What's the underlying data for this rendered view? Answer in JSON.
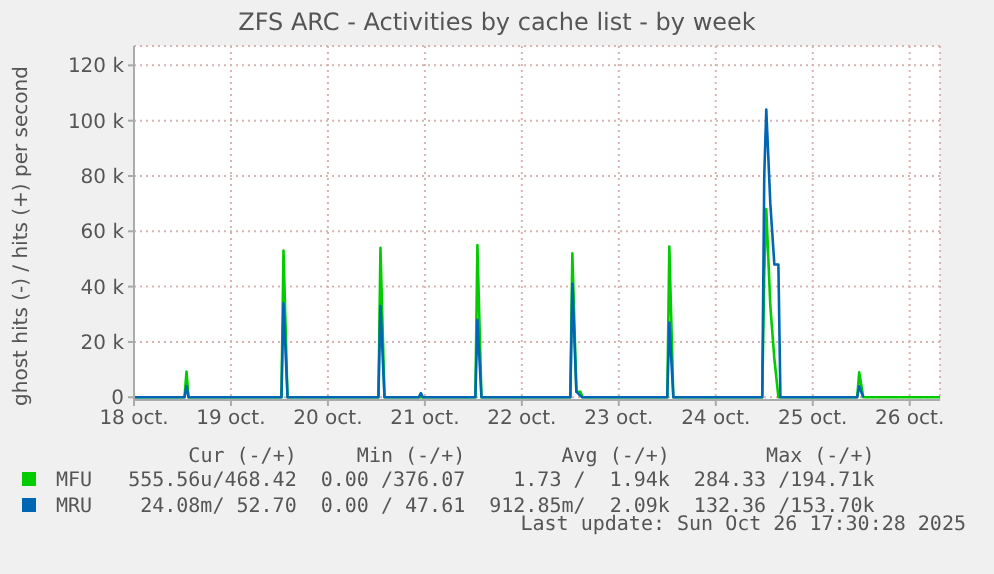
{
  "chart_data": {
    "type": "line",
    "title": "ZFS ARC - Activities by cache list - by week",
    "ylabel": "ghost hits (-) / hits (+) per second",
    "x": [
      "2025-10-18T00:00",
      "2025-10-18T12:30",
      "2025-10-18T13:00",
      "2025-10-18T13:30",
      "2025-10-19T12:30",
      "2025-10-19T13:00",
      "2025-10-19T14:00",
      "2025-10-20T12:30",
      "2025-10-20T13:00",
      "2025-10-20T14:00",
      "2025-10-20T22:30",
      "2025-10-20T23:00",
      "2025-10-20T23:30",
      "2025-10-21T12:30",
      "2025-10-21T13:00",
      "2025-10-21T14:00",
      "2025-10-22T12:00",
      "2025-10-22T12:30",
      "2025-10-22T13:30",
      "2025-10-22T14:30",
      "2025-10-22T15:00",
      "2025-10-23T12:00",
      "2025-10-23T12:30",
      "2025-10-23T13:30",
      "2025-10-24T11:30",
      "2025-10-24T12:00",
      "2025-10-24T12:30",
      "2025-10-24T13:30",
      "2025-10-24T14:30",
      "2025-10-24T15:30",
      "2025-10-24T16:00",
      "2025-10-25T11:00",
      "2025-10-25T11:30",
      "2025-10-25T12:30",
      "2025-10-26T07:30"
    ],
    "series": [
      {
        "name": "MFU",
        "color": "#00cc00",
        "values": [
          0,
          0,
          9300,
          0,
          0,
          53000,
          0,
          0,
          54000,
          0,
          0,
          0,
          0,
          0,
          55000,
          0,
          0,
          52000,
          2000,
          2000,
          0,
          0,
          54500,
          0,
          0,
          45000,
          68000,
          33000,
          14000,
          0,
          0,
          0,
          9000,
          0,
          0
        ]
      },
      {
        "name": "MRU",
        "color": "#0066b3",
        "values": [
          0,
          0,
          4000,
          0,
          0,
          34000,
          0,
          0,
          33000,
          0,
          0,
          1500,
          0,
          0,
          28000,
          0,
          0,
          41000,
          2000,
          500,
          0,
          0,
          27000,
          0,
          0,
          80000,
          104000,
          70000,
          48000,
          48000,
          0,
          0,
          4000,
          0,
          null
        ]
      }
    ],
    "xlim": [
      "2025-10-18T00:00",
      "2025-10-26T07:30"
    ],
    "xticks": [
      {
        "value": "2025-10-18",
        "label": "18 oct."
      },
      {
        "value": "2025-10-19",
        "label": "19 oct."
      },
      {
        "value": "2025-10-20",
        "label": "20 oct."
      },
      {
        "value": "2025-10-21",
        "label": "21 oct."
      },
      {
        "value": "2025-10-22",
        "label": "22 oct."
      },
      {
        "value": "2025-10-23",
        "label": "23 oct."
      },
      {
        "value": "2025-10-24",
        "label": "24 oct."
      },
      {
        "value": "2025-10-25",
        "label": "25 oct."
      },
      {
        "value": "2025-10-26",
        "label": "26 oct."
      }
    ],
    "ylim": [
      -1000,
      127000
    ],
    "yticks": [
      {
        "value": 0,
        "label": "0"
      },
      {
        "value": 20000,
        "label": "20 k"
      },
      {
        "value": 40000,
        "label": "40 k"
      },
      {
        "value": 60000,
        "label": "60 k"
      },
      {
        "value": 80000,
        "label": "80 k"
      },
      {
        "value": 100000,
        "label": "100 k"
      },
      {
        "value": 120000,
        "label": "120 k"
      }
    ],
    "grid": true,
    "legend": "bottom left",
    "marker": "none",
    "line_style": "solid",
    "annotations": [
      "Cur (-/+)",
      "Min (-/+)",
      "Avg (-/+)",
      "Max (-/+)",
      "555.56u/468.42",
      "0.00 /376.07",
      "1.73 /  1.94k",
      "284.33 /194.71k",
      "24.08m/ 52.70",
      "0.00 / 47.61",
      "912.85m/  2.09k",
      "132.36 /153.70k",
      "Last update: Sun Oct 26 17:30:28 2025"
    ]
  }
}
